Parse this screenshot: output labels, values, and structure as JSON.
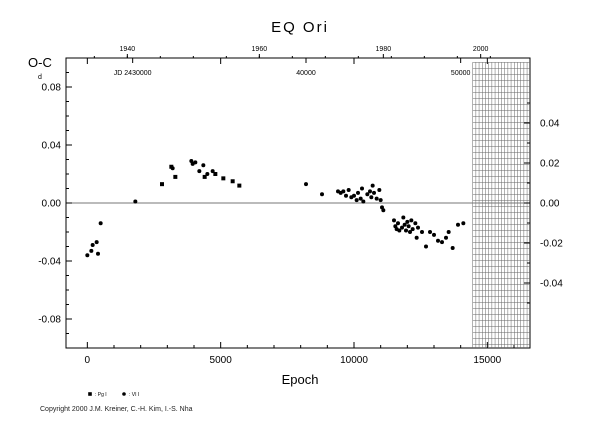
{
  "chart_data": {
    "type": "scatter",
    "title": "EQ Ori",
    "ylabel": "O-C",
    "ylabel_sup": "d",
    "xlabel": "Epoch",
    "xlim": [
      -800,
      16600
    ],
    "ylim": [
      -0.1,
      0.1
    ],
    "x_ticks": [
      0,
      5000,
      10000,
      15000
    ],
    "x_tick_labels": [
      "0",
      "5000",
      "10000",
      "15000"
    ],
    "y_ticks_left": [
      0.08,
      0.04,
      0.0,
      -0.04,
      -0.08
    ],
    "y_tick_labels_left": [
      "0.08",
      "0.04",
      "0.00",
      "-0.04",
      "-0.08"
    ],
    "y_ticks_right": [
      0.04,
      0.02,
      0.0,
      -0.02,
      -0.04
    ],
    "y_tick_labels_right": [
      "0.04",
      "0.02",
      "0.00",
      "-0.02",
      "-0.04"
    ],
    "top_year_labels": [
      "1940",
      "1960",
      "1980",
      "2000"
    ],
    "top_year_epochs": [
      1500,
      6450,
      11100,
      14750
    ],
    "top_jd_labels": [
      "JD 2430000",
      "40000",
      "50000"
    ],
    "top_jd_epochs": [
      1700,
      8200,
      14000
    ],
    "grid": false,
    "zero_line": true,
    "hatched_region_x": [
      14450,
      16600
    ],
    "legend_position": "bottom-left",
    "series": [
      {
        "name": ": Pg I",
        "marker": "square",
        "points": [
          [
            2800,
            0.013
          ],
          [
            3150,
            0.025
          ],
          [
            3300,
            0.018
          ],
          [
            4400,
            0.018
          ],
          [
            4800,
            0.02
          ],
          [
            5100,
            0.017
          ],
          [
            5450,
            0.015
          ],
          [
            5700,
            0.012
          ]
        ]
      },
      {
        "name": ": VI I",
        "marker": "dot",
        "points": [
          [
            0,
            -0.036
          ],
          [
            150,
            -0.033
          ],
          [
            200,
            -0.029
          ],
          [
            350,
            -0.027
          ],
          [
            400,
            -0.035
          ],
          [
            500,
            -0.014
          ],
          [
            1800,
            0.001
          ],
          [
            3200,
            0.024
          ],
          [
            3900,
            0.029
          ],
          [
            3950,
            0.027
          ],
          [
            4050,
            0.028
          ],
          [
            4200,
            0.022
          ],
          [
            4350,
            0.026
          ],
          [
            4500,
            0.02
          ],
          [
            4700,
            0.022
          ],
          [
            8200,
            0.013
          ],
          [
            8800,
            0.006
          ],
          [
            9400,
            0.008
          ],
          [
            9500,
            0.007
          ],
          [
            9600,
            0.008
          ],
          [
            9700,
            0.005
          ],
          [
            9800,
            0.009
          ],
          [
            9900,
            0.004
          ],
          [
            10000,
            0.005
          ],
          [
            10100,
            0.002
          ],
          [
            10150,
            0.007
          ],
          [
            10250,
            0.003
          ],
          [
            10300,
            0.01
          ],
          [
            10350,
            0.001
          ],
          [
            10500,
            0.006
          ],
          [
            10600,
            0.008
          ],
          [
            10650,
            0.004
          ],
          [
            10700,
            0.012
          ],
          [
            10750,
            0.007
          ],
          [
            10850,
            0.003
          ],
          [
            10950,
            0.009
          ],
          [
            11000,
            0.002
          ],
          [
            11050,
            -0.003
          ],
          [
            11100,
            -0.005
          ],
          [
            11500,
            -0.012
          ],
          [
            11550,
            -0.016
          ],
          [
            11600,
            -0.018
          ],
          [
            11650,
            -0.014
          ],
          [
            11700,
            -0.019
          ],
          [
            11800,
            -0.017
          ],
          [
            11850,
            -0.01
          ],
          [
            11900,
            -0.015
          ],
          [
            11950,
            -0.019
          ],
          [
            12000,
            -0.013
          ],
          [
            12050,
            -0.016
          ],
          [
            12100,
            -0.02
          ],
          [
            12150,
            -0.012
          ],
          [
            12200,
            -0.018
          ],
          [
            12300,
            -0.014
          ],
          [
            12350,
            -0.024
          ],
          [
            12400,
            -0.017
          ],
          [
            12550,
            -0.02
          ],
          [
            12700,
            -0.03
          ],
          [
            12850,
            -0.02
          ],
          [
            13000,
            -0.022
          ],
          [
            13150,
            -0.026
          ],
          [
            13300,
            -0.027
          ],
          [
            13450,
            -0.024
          ],
          [
            13550,
            -0.02
          ],
          [
            13700,
            -0.031
          ],
          [
            13900,
            -0.015
          ],
          [
            14100,
            -0.014
          ]
        ]
      }
    ]
  },
  "copyright": "Copyright 2000 J.M. Kreiner, C.-H. Kim, I.-S. Nha"
}
